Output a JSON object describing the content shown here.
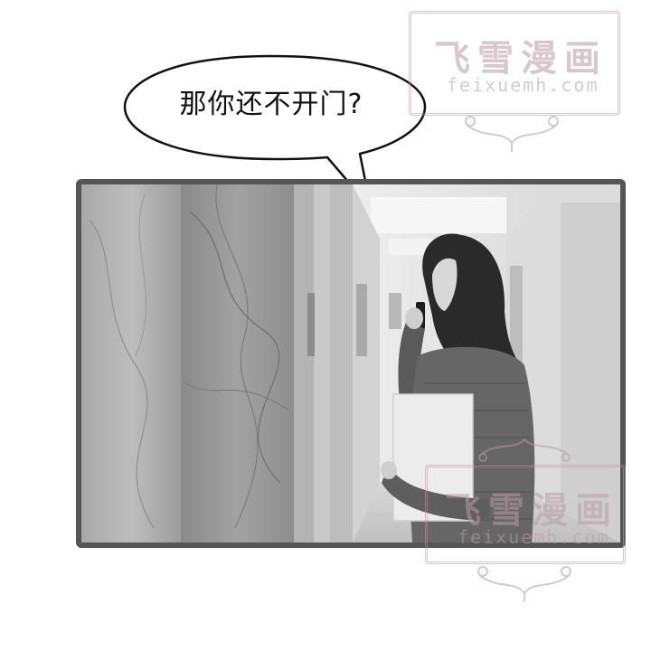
{
  "speech_bubble": {
    "text": "那你还不开门?"
  },
  "watermark_top": {
    "title": "飞雪漫画",
    "url": "feixuemh.com"
  },
  "watermark_bottom": {
    "title": "飞雪漫画",
    "url": "feixuemh.com"
  },
  "panel": {
    "scene": "woman-on-phone-in-hallway",
    "colors": {
      "border": "#555555",
      "wall": "#9a9a9a",
      "corridor": "#e6e6e6"
    }
  },
  "colors": {
    "watermark": "#ba9ca6"
  }
}
